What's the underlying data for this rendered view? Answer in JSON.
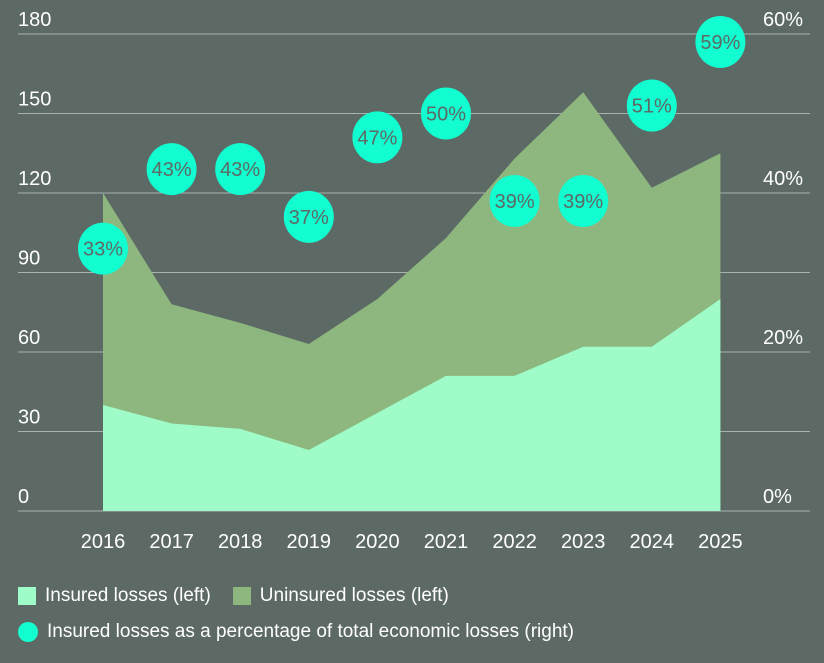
{
  "chart_data": {
    "type": "area",
    "stacked": true,
    "x": [
      "2016",
      "2017",
      "2018",
      "2019",
      "2020",
      "2021",
      "2022",
      "2023",
      "2024",
      "2025"
    ],
    "series": [
      {
        "name": "Insured losses (left)",
        "axis": "left",
        "color": "#9ffcc8",
        "values": [
          40,
          33,
          31,
          23,
          37,
          51,
          51,
          62,
          62,
          80
        ]
      },
      {
        "name": "Uninsured losses (left)",
        "axis": "left",
        "color": "#8db77f",
        "values": [
          80,
          45,
          40,
          40,
          43,
          52,
          82,
          96,
          60,
          55
        ]
      },
      {
        "name": "Insured losses as a percentage of total economic losses (right)",
        "axis": "right",
        "type": "scatter",
        "color": "#12fdd0",
        "values": [
          33,
          43,
          43,
          37,
          47,
          50,
          39,
          39,
          51,
          59
        ],
        "labels": [
          "33%",
          "43%",
          "43%",
          "37%",
          "47%",
          "50%",
          "39%",
          "39%",
          "51%",
          "59%"
        ]
      }
    ],
    "left_axis": {
      "ylim": [
        0,
        180
      ],
      "ticks": [
        "0",
        "30",
        "60",
        "90",
        "120",
        "150",
        "180"
      ]
    },
    "right_axis": {
      "ylim": [
        0,
        60
      ],
      "ticks": [
        "0%",
        "20%",
        "40%",
        "60%"
      ]
    },
    "grid": true,
    "legend_placement": "bottom-left"
  }
}
